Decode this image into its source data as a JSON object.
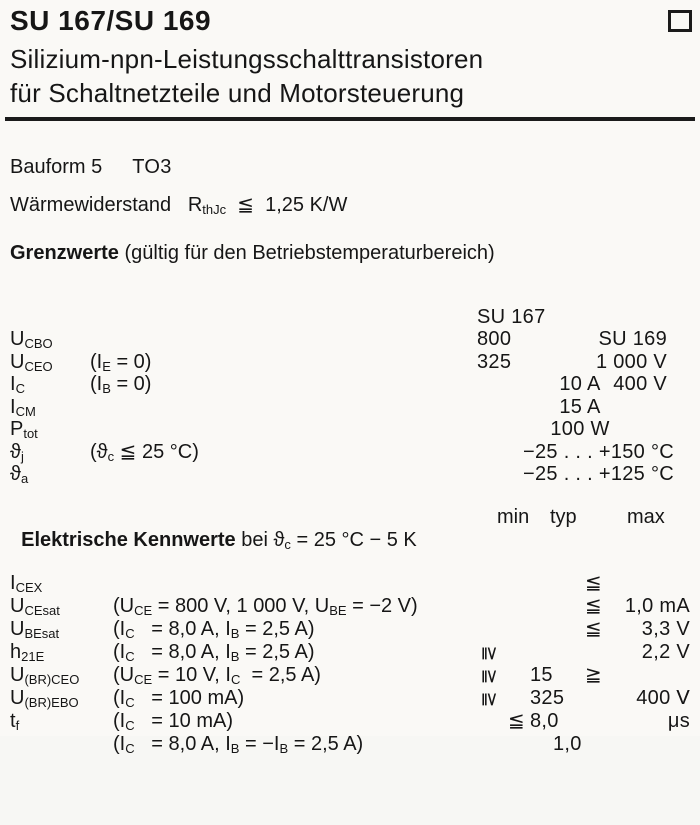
{
  "header": {
    "title": "SU 167/SU 169",
    "subtitle1": "Silizium-npn-Leistungsschalttransistoren",
    "subtitle2": "für Schaltnetzteile und Motorsteuerung"
  },
  "info": {
    "bauform_label": "Bauform 5",
    "bauform_value": "TO3",
    "thermal": [
      {
        "t": "Wärmewiderstand   R"
      },
      {
        "t": "thJc",
        "sub": true
      },
      {
        "t": "  ≦  1,25 K/W"
      }
    ]
  },
  "grenzwerte": {
    "heading": [
      {
        "t": "Grenzwerte",
        "b": true
      },
      {
        "t": " (gültig für den Betriebstemperaturbereich)"
      }
    ],
    "header": {
      "su167": "SU 167",
      "su169": "SU 169"
    },
    "rows": [
      {
        "label": [
          {
            "t": "U"
          },
          {
            "t": "CBO",
            "sub": true
          }
        ],
        "cond": [
          {
            "t": "(I"
          },
          {
            "t": "E",
            "sub": true
          },
          {
            "t": " = 0)"
          }
        ],
        "v167": "800",
        "v169": "1 000 V"
      },
      {
        "label": [
          {
            "t": "U"
          },
          {
            "t": "CEO",
            "sub": true
          }
        ],
        "cond": [
          {
            "t": "(I"
          },
          {
            "t": "B",
            "sub": true
          },
          {
            "t": " = 0)"
          }
        ],
        "v167": "325",
        "v169": "400 V"
      },
      {
        "label": [
          {
            "t": "I"
          },
          {
            "t": "C",
            "sub": true
          }
        ],
        "center": "10 A"
      },
      {
        "label": [
          {
            "t": "I"
          },
          {
            "t": "CM",
            "sub": true
          }
        ],
        "center": "15 A"
      },
      {
        "label": [
          {
            "t": "P"
          },
          {
            "t": "tot",
            "sub": true
          }
        ],
        "cond": [
          {
            "t": "(ϑ"
          },
          {
            "t": "c",
            "sub": true
          },
          {
            "t": " ≦ 25 °C)"
          }
        ],
        "center": "100 W"
      },
      {
        "label": [
          {
            "t": "ϑ"
          },
          {
            "t": "j",
            "sub": true
          }
        ],
        "range": "−25 . . . +150 °C"
      },
      {
        "label": [
          {
            "t": "ϑ"
          },
          {
            "t": "a",
            "sub": true
          }
        ],
        "range": "−25 . . . +125 °C"
      }
    ]
  },
  "kennwerte": {
    "heading": [
      {
        "t": "Elektrische Kennwerte",
        "b": true
      },
      {
        "t": " bei ϑ"
      },
      {
        "t": "c",
        "sub": true
      },
      {
        "t": " = 25 °C − 5 K"
      }
    ],
    "cols": {
      "min": "min",
      "typ": "typ",
      "max": "max"
    },
    "rows": [
      {
        "label": [
          {
            "t": "I"
          },
          {
            "t": "CEX",
            "sub": true
          }
        ],
        "cond": [
          {
            "t": "(U"
          },
          {
            "t": "CE",
            "sub": true
          },
          {
            "t": " = 800 V, 1 000 V, U"
          },
          {
            "t": "BE",
            "sub": true
          },
          {
            "t": " = −2 V)"
          }
        ],
        "max_rel": "≦",
        "max_val": "1,0 mA"
      },
      {
        "label": [
          {
            "t": "U"
          },
          {
            "t": "CEsat",
            "sub": true
          }
        ],
        "cond": [
          {
            "t": "(I"
          },
          {
            "t": "C",
            "sub": true
          },
          {
            "t": "   = 8,0 A, I"
          },
          {
            "t": "B",
            "sub": true
          },
          {
            "t": " = 2,5 A)"
          }
        ],
        "max_rel": "≦",
        "max_val": "3,3 V"
      },
      {
        "label": [
          {
            "t": "U"
          },
          {
            "t": "BEsat",
            "sub": true
          }
        ],
        "cond": [
          {
            "t": "(I"
          },
          {
            "t": "C",
            "sub": true
          },
          {
            "t": "   = 8,0 A, I"
          },
          {
            "t": "B",
            "sub": true
          },
          {
            "t": " = 2,5 A)"
          }
        ],
        "max_rel": "≦",
        "max_val": "2,2 V"
      },
      {
        "label": [
          {
            "t": "h"
          },
          {
            "t": "21E",
            "sub": true
          }
        ],
        "cond": [
          {
            "t": "(U"
          },
          {
            "t": "CE",
            "sub": true
          },
          {
            "t": " = 10 V, I"
          },
          {
            "t": "C",
            "sub": true
          },
          {
            "t": "  = 2,5 A)"
          }
        ],
        "min_rel": "≧",
        "min_val": "15"
      },
      {
        "label": [
          {
            "t": "U"
          },
          {
            "t": "(BR)CEO",
            "sub": true
          }
        ],
        "cond": [
          {
            "t": "(I"
          },
          {
            "t": "C",
            "sub": true
          },
          {
            "t": "   = 100 mA)"
          }
        ],
        "min_rel": "≧",
        "min_val": "325",
        "max_rel": "≧",
        "max_val": "400 V"
      },
      {
        "label": [
          {
            "t": "U"
          },
          {
            "t": "(BR)EBO",
            "sub": true
          }
        ],
        "cond": [
          {
            "t": "(I"
          },
          {
            "t": "C",
            "sub": true
          },
          {
            "t": "   = 10 mA)"
          }
        ],
        "min_rel": "≧",
        "min_val": "8,0",
        "max_val": "V"
      },
      {
        "label": [
          {
            "t": "t"
          },
          {
            "t": "f",
            "sub": true
          }
        ],
        "cond": [
          {
            "t": "(I"
          },
          {
            "t": "C",
            "sub": true
          },
          {
            "t": "   = 8,0 A, I"
          },
          {
            "t": "B",
            "sub": true
          },
          {
            "t": " = −I"
          },
          {
            "t": "B",
            "sub": true
          },
          {
            "t": " = 2,5 A)"
          }
        ],
        "min_rel": "≦",
        "min_val": "1,0",
        "max_val": "μs"
      }
    ]
  }
}
